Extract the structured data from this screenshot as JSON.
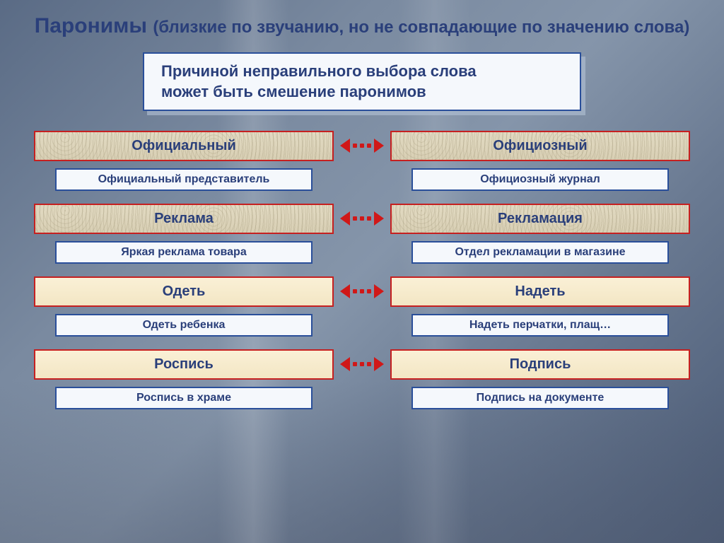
{
  "title_main": "Паронимы",
  "title_sub": "(близкие по звучанию, но не совпадающие по значению слова)",
  "callout_line1": "Причиной неправильного выбора слова",
  "callout_line2": "может быть смешение паронимов",
  "colors": {
    "title": "#2a3f7a",
    "word_border": "#c62020",
    "example_border": "#2a4f9a",
    "arrow": "#d01818"
  },
  "pairs": [
    {
      "left_word": "Официальный",
      "right_word": "Официозный",
      "left_example": "Официальный представитель",
      "right_example": "Официозный журнал",
      "tex": "sand"
    },
    {
      "left_word": "Реклама",
      "right_word": "Рекламация",
      "left_example": "Яркая реклама товара",
      "right_example": "Отдел рекламации в магазине",
      "tex": "sand"
    },
    {
      "left_word": "Одеть",
      "right_word": "Надеть",
      "left_example": "Одеть ребенка",
      "right_example": "Надеть перчатки, плащ…",
      "tex": "cream"
    },
    {
      "left_word": "Роспись",
      "right_word": "Подпись",
      "left_example": "Роспись в храме",
      "right_example": "Подпись на документе",
      "tex": "cream"
    }
  ]
}
